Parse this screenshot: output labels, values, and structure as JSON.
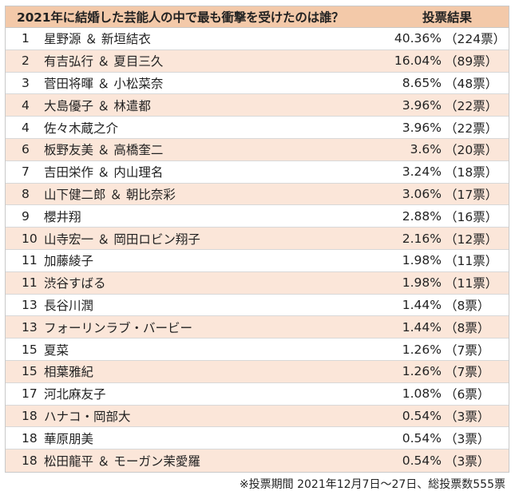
{
  "header": {
    "question": "2021年に結婚した芸能人の中で最も衝撃を受けたのは誰？",
    "result_label": "投票結果"
  },
  "rows": [
    {
      "rank": "1",
      "name": "星野源 ＆ 新垣結衣",
      "percent": "40.36%",
      "votes": "（224票）"
    },
    {
      "rank": "2",
      "name": "有吉弘行 ＆ 夏目三久",
      "percent": "16.04%",
      "votes": "（89票）"
    },
    {
      "rank": "3",
      "name": "菅田将暉 ＆ 小松菜奈",
      "percent": "8.65%",
      "votes": "（48票）"
    },
    {
      "rank": "4",
      "name": "大島優子 ＆ 林遣都",
      "percent": "3.96%",
      "votes": "（22票）"
    },
    {
      "rank": "4",
      "name": "佐々木蔵之介",
      "percent": "3.96%",
      "votes": "（22票）"
    },
    {
      "rank": "6",
      "name": "板野友美 ＆ 高橋奎二",
      "percent": "3.6%",
      "votes": "（20票）"
    },
    {
      "rank": "7",
      "name": "吉田栄作 ＆ 内山理名",
      "percent": "3.24%",
      "votes": "（18票）"
    },
    {
      "rank": "8",
      "name": "山下健二郎 ＆ 朝比奈彩",
      "percent": "3.06%",
      "votes": "（17票）"
    },
    {
      "rank": "9",
      "name": "櫻井翔",
      "percent": "2.88%",
      "votes": "（16票）"
    },
    {
      "rank": "10",
      "name": "山寺宏一 ＆ 岡田ロビン翔子",
      "percent": "2.16%",
      "votes": "（12票）"
    },
    {
      "rank": "11",
      "name": "加藤綾子",
      "percent": "1.98%",
      "votes": "（11票）"
    },
    {
      "rank": "11",
      "name": "渋谷すばる",
      "percent": "1.98%",
      "votes": "（11票）"
    },
    {
      "rank": "13",
      "name": "長谷川潤",
      "percent": "1.44%",
      "votes": "（8票）"
    },
    {
      "rank": "13",
      "name": "フォーリンラブ・バービー",
      "percent": "1.44%",
      "votes": "（8票）"
    },
    {
      "rank": "15",
      "name": "夏菜",
      "percent": "1.26%",
      "votes": "（7票）"
    },
    {
      "rank": "15",
      "name": "相葉雅紀",
      "percent": "1.26%",
      "votes": "（7票）"
    },
    {
      "rank": "17",
      "name": "河北麻友子",
      "percent": "1.08%",
      "votes": "（6票）"
    },
    {
      "rank": "18",
      "name": "ハナコ・岡部大",
      "percent": "0.54%",
      "votes": "（3票）"
    },
    {
      "rank": "18",
      "name": "華原朋美",
      "percent": "0.54%",
      "votes": "（3票）"
    },
    {
      "rank": "18",
      "name": "松田龍平 ＆ モーガン茉愛羅",
      "percent": "0.54%",
      "votes": "（3票）"
    }
  ],
  "footnote": "※投票期間 2021年12月7日〜27日、総投票数555票",
  "colors": {
    "header_bg": "#f3c9a9",
    "alt_row_bg": "#fbe6d9",
    "row_bg": "#ffffff",
    "border": "#c9c9c9"
  }
}
